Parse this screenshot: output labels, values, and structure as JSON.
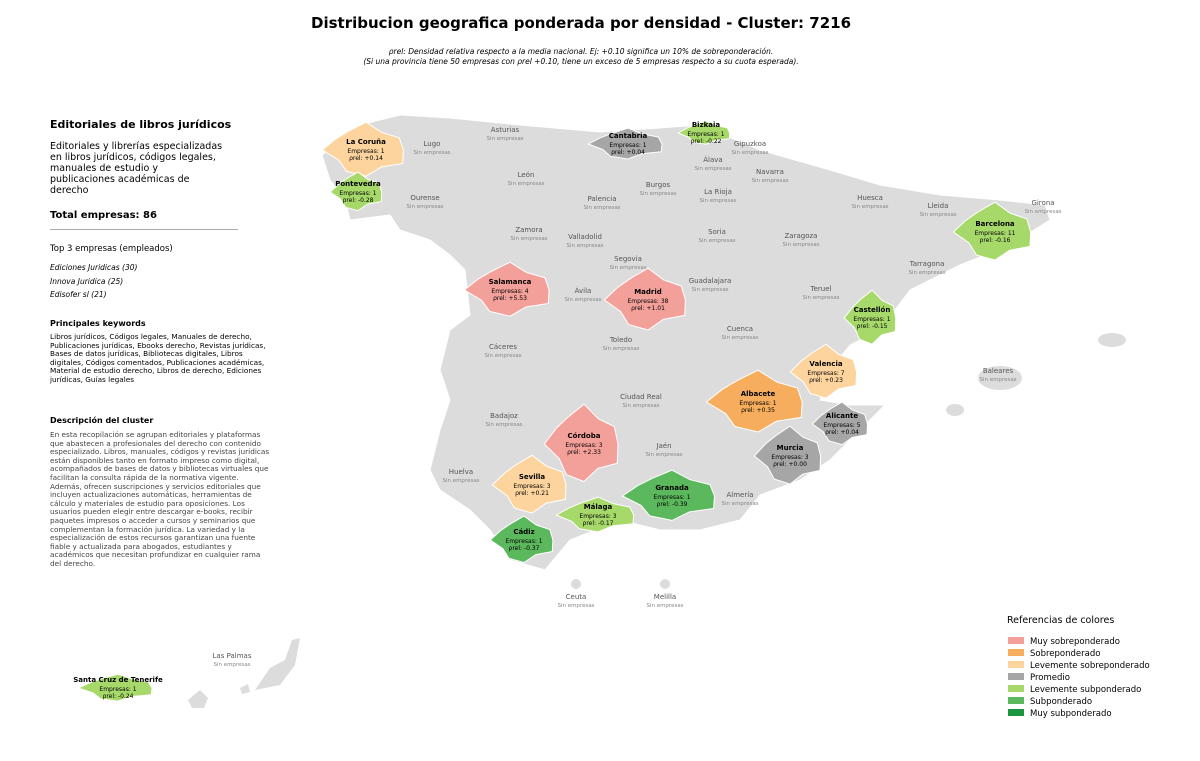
{
  "header": {
    "title": "Distribucion geografica ponderada por densidad - Cluster: 7216",
    "note_lines": [
      "ρrel: Densidad relativa respecto a la media nacional. Ej: +0.10 significa un 10% de sobreponderación.",
      "(Si una provincia tiene 50 empresas con ρrel +0.10, tiene un exceso de 5 empresas respecto a su cuota esperada)."
    ]
  },
  "panel": {
    "title": "Editoriales de libros jurídicos",
    "subtitle": "Editoriales y librerías especializadas en libros jurídicos, códigos legales, manuales de estudio y publicaciones académicas de derecho",
    "total": "Total empresas: 86",
    "top_heading": "Top 3 empresas (empleados)",
    "top": [
      "Ediciones Juridicas (30)",
      "Innova Juridica (25)",
      "Edisofer sl (21)"
    ],
    "keywords_heading": "Principales keywords",
    "keywords": "Libros jurídicos, Códigos legales, Manuales de derecho, Publicaciones jurídicas, Ebooks derecho, Revistas jurídicas, Bases de datos jurídicas, Bibliotecas digitales, Libros digitales, Códigos comentados, Publicaciones académicas, Material de estudio derecho, Libros de derecho, Ediciones jurídicas, Guías legales",
    "description_heading": "Descripción del cluster",
    "description": "En esta recopilación se agrupan editoriales y plataformas que abastecen a profesionales del derecho con contenido especializado. Libros, manuales, códigos y revistas jurídicas están disponibles tanto en formato impreso como digital, acompañados de bases de datos y bibliotecas virtuales que facilitan la consulta rápida de la normativa vigente. Además, ofrecen suscripciones y servicios editoriales que incluyen actualizaciones automáticas, herramientas de cálculo y materiales de estudio para oposiciones. Los usuarios pueden elegir entre descargar e-books, recibir paquetes impresos o acceder a cursos y seminarios que complementan la formación jurídica. La variedad y la especialización de estos recursos garantizan una fuente fiable y actualizada para abogados, estudiantes y académicos que necesitan profundizar en cualquier rama del derecho."
  },
  "provinces": [
    {
      "name": "La Coruña",
      "empresas": "Empresas: 1",
      "rho": "ρrel: +0.14",
      "category": "Levemente sobreponderado"
    },
    {
      "name": "Pontevedra",
      "empresas": "Empresas: 1",
      "rho": "ρrel: -0.28",
      "category": "Levemente subponderado"
    },
    {
      "name": "Cantabria",
      "empresas": "Empresas: 1",
      "rho": "ρrel: +0.04",
      "category": "Promedio"
    },
    {
      "name": "Bizkaia",
      "empresas": "Empresas: 1",
      "rho": "ρrel: -0.22",
      "category": "Levemente subponderado"
    },
    {
      "name": "Barcelona",
      "empresas": "Empresas: 11",
      "rho": "ρrel: -0.16",
      "category": "Levemente subponderado"
    },
    {
      "name": "Salamanca",
      "empresas": "Empresas: 4",
      "rho": "ρrel: +5.53",
      "category": "Muy sobreponderado"
    },
    {
      "name": "Madrid",
      "empresas": "Empresas: 38",
      "rho": "ρrel: +1.01",
      "category": "Muy sobreponderado"
    },
    {
      "name": "Castellón",
      "empresas": "Empresas: 1",
      "rho": "ρrel: -0.15",
      "category": "Levemente subponderado"
    },
    {
      "name": "Valencia",
      "empresas": "Empresas: 7",
      "rho": "ρrel: +0.23",
      "category": "Levemente sobreponderado"
    },
    {
      "name": "Albacete",
      "empresas": "Empresas: 1",
      "rho": "ρrel: +0.35",
      "category": "Sobreponderado"
    },
    {
      "name": "Alicante",
      "empresas": "Empresas: 5",
      "rho": "ρrel: +0.04",
      "category": "Promedio"
    },
    {
      "name": "Murcia",
      "empresas": "Empresas: 3",
      "rho": "ρrel: +0.00",
      "category": "Promedio"
    },
    {
      "name": "Córdoba",
      "empresas": "Empresas: 3",
      "rho": "ρrel: +2.33",
      "category": "Muy sobreponderado"
    },
    {
      "name": "Sevilla",
      "empresas": "Empresas: 3",
      "rho": "ρrel: +0.21",
      "category": "Levemente sobreponderado"
    },
    {
      "name": "Granada",
      "empresas": "Empresas: 1",
      "rho": "ρrel: -0.39",
      "category": "Subponderado"
    },
    {
      "name": "Málaga",
      "empresas": "Empresas: 3",
      "rho": "ρrel: -0.17",
      "category": "Levemente subponderado"
    },
    {
      "name": "Cádiz",
      "empresas": "Empresas: 1",
      "rho": "ρrel: -0.37",
      "category": "Subponderado"
    },
    {
      "name": "Santa Cruz de Tenerife",
      "empresas": "Empresas: 1",
      "rho": "ρrel: -0.24",
      "category": "Levemente subponderado"
    }
  ],
  "empty_provinces": [
    {
      "name": "Lugo",
      "note": "Sin empresas"
    },
    {
      "name": "Asturias",
      "note": "Sin empresas"
    },
    {
      "name": "León",
      "note": "Sin empresas"
    },
    {
      "name": "Gipuzkoa",
      "note": "Sin empresas"
    },
    {
      "name": "Álava",
      "note": "Sin empresas"
    },
    {
      "name": "Navarra",
      "note": "Sin empresas"
    },
    {
      "name": "Burgos",
      "note": "Sin empresas"
    },
    {
      "name": "Palencia",
      "note": "Sin empresas"
    },
    {
      "name": "Ourense",
      "note": "Sin empresas"
    },
    {
      "name": "La Rioja",
      "note": "Sin empresas"
    },
    {
      "name": "Huesca",
      "note": "Sin empresas"
    },
    {
      "name": "Lleida",
      "note": "Sin empresas"
    },
    {
      "name": "Girona",
      "note": "Sin empresas"
    },
    {
      "name": "Zamora",
      "note": "Sin empresas"
    },
    {
      "name": "Valladolid",
      "note": "Sin empresas"
    },
    {
      "name": "Soria",
      "note": "Sin empresas"
    },
    {
      "name": "Zaragoza",
      "note": "Sin empresas"
    },
    {
      "name": "Segovia",
      "note": "Sin empresas"
    },
    {
      "name": "Tarragona",
      "note": "Sin empresas"
    },
    {
      "name": "Guadalajara",
      "note": "Sin empresas"
    },
    {
      "name": "Ávila",
      "note": "Sin empresas"
    },
    {
      "name": "Teruel",
      "note": "Sin empresas"
    },
    {
      "name": "Cuenca",
      "note": "Sin empresas"
    },
    {
      "name": "Toledo",
      "note": "Sin empresas"
    },
    {
      "name": "Cáceres",
      "note": "Sin empresas"
    },
    {
      "name": "Baleares",
      "note": "Sin empresas"
    },
    {
      "name": "Ciudad Real",
      "note": "Sin empresas"
    },
    {
      "name": "Badajoz",
      "note": "Sin empresas"
    },
    {
      "name": "Jaén",
      "note": "Sin empresas"
    },
    {
      "name": "Huelva",
      "note": "Sin empresas"
    },
    {
      "name": "Almería",
      "note": "Sin empresas"
    },
    {
      "name": "Ceuta",
      "note": "Sin empresas"
    },
    {
      "name": "Melilla",
      "note": "Sin empresas"
    },
    {
      "name": "Las Palmas",
      "note": "Sin empresas"
    }
  ],
  "legend": {
    "title": "Referencias de colores",
    "items": [
      {
        "name": "Muy sobreponderado",
        "color": "#f4a09a"
      },
      {
        "name": "Sobreponderado",
        "color": "#f6ae5e"
      },
      {
        "name": "Levemente sobreponderado",
        "color": "#fdd49e"
      },
      {
        "name": "Promedio",
        "color": "#a6a6a6"
      },
      {
        "name": "Levemente subponderado",
        "color": "#a6d96a"
      },
      {
        "name": "Subponderado",
        "color": "#5cb85c"
      },
      {
        "name": "Muy subponderado",
        "color": "#1a9641"
      }
    ]
  }
}
